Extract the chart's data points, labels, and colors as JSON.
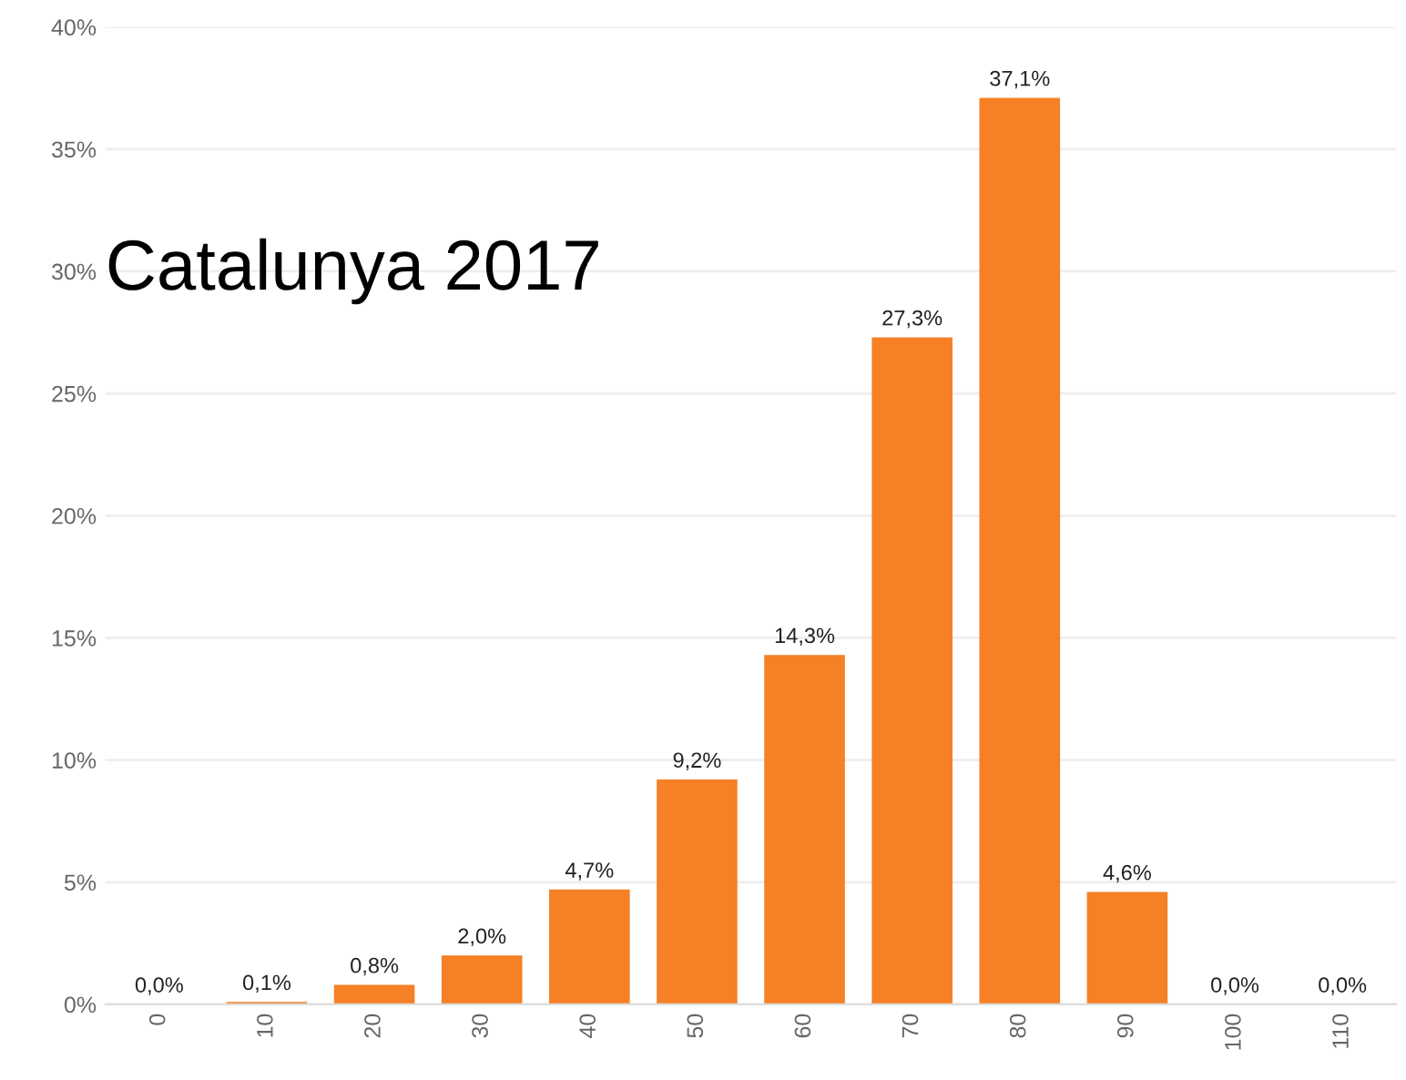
{
  "chart_data": {
    "type": "bar",
    "title": "Catalunya 2017",
    "categories": [
      "0",
      "10",
      "20",
      "30",
      "40",
      "50",
      "60",
      "70",
      "80",
      "90",
      "100",
      "110"
    ],
    "values": [
      0.0,
      0.1,
      0.8,
      2.0,
      4.7,
      9.2,
      14.3,
      27.3,
      37.1,
      4.6,
      0.0,
      0.0
    ],
    "value_labels": [
      "0,0%",
      "0,1%",
      "0,8%",
      "2,0%",
      "4,7%",
      "9,2%",
      "14,3%",
      "27,3%",
      "37,1%",
      "4,6%",
      "0,0%",
      "0,0%"
    ],
    "color": "#f58025",
    "ylim": [
      0,
      40
    ],
    "yticks": [
      {
        "value": 0,
        "label": "0%"
      },
      {
        "value": 5,
        "label": "5%"
      },
      {
        "value": 10,
        "label": "10%"
      },
      {
        "value": 15,
        "label": "15%"
      },
      {
        "value": 20,
        "label": "20%"
      },
      {
        "value": 25,
        "label": "25%"
      },
      {
        "value": 30,
        "label": "30%"
      },
      {
        "value": 35,
        "label": "35%"
      },
      {
        "value": 40,
        "label": "40%"
      }
    ],
    "grid": "y",
    "legend": false
  }
}
